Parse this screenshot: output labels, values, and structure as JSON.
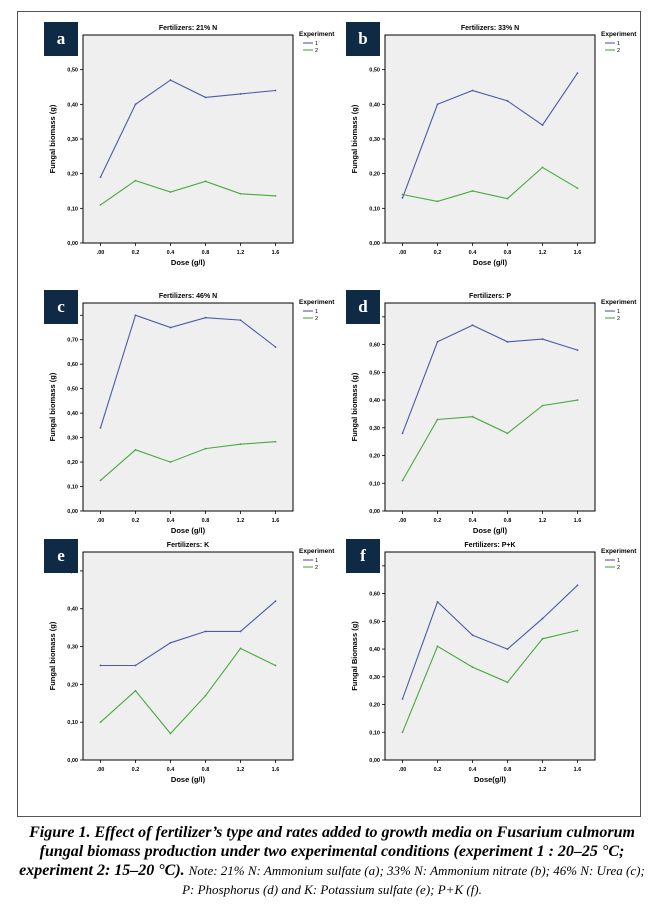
{
  "colors": {
    "experiment_1": "#4a5ba8",
    "experiment_2": "#4aa83f",
    "plot_background": "#efefef",
    "badge": "#0f2a44"
  },
  "chart_data": [
    {
      "id": "a",
      "type": "line",
      "title": "Fertilizers: 21% N",
      "xlabel": "Dose (g/l)",
      "ylabel": "Fungal biomass (g)",
      "categories": [
        ".00",
        "0.2",
        "0.4",
        "0.8",
        "1.2",
        "1.6"
      ],
      "yticks": [
        "0,00",
        "0,10",
        "0,20",
        "0,30",
        "0,40",
        "0,50"
      ],
      "ylim": [
        0,
        0.6
      ],
      "legend_title": "Experiment",
      "legend_position": "top-right",
      "series": [
        {
          "name": "1",
          "values": [
            0.19,
            0.4,
            0.47,
            0.42,
            0.43,
            0.44
          ]
        },
        {
          "name": "2",
          "values": [
            0.11,
            0.18,
            0.147,
            0.178,
            0.142,
            0.136
          ]
        }
      ]
    },
    {
      "id": "b",
      "type": "line",
      "title": "Fertilizers: 33% N",
      "xlabel": "Dose (g/l)",
      "ylabel": "Fungal biomass (g)",
      "categories": [
        ".00",
        "0.2",
        "0.4",
        "0.8",
        "1.2",
        "1.6"
      ],
      "yticks": [
        "0,00",
        "0,10",
        "0,20",
        "0,30",
        "0,40",
        "0,50"
      ],
      "ylim": [
        0,
        0.6
      ],
      "legend_title": "Experiment",
      "legend_position": "top-right",
      "series": [
        {
          "name": "1",
          "values": [
            0.13,
            0.4,
            0.44,
            0.41,
            0.34,
            0.49
          ]
        },
        {
          "name": "2",
          "values": [
            0.14,
            0.12,
            0.15,
            0.128,
            0.218,
            0.158
          ]
        }
      ]
    },
    {
      "id": "c",
      "type": "line",
      "title": "Fertilizers: 46% N",
      "xlabel": "Dose (g/l)",
      "ylabel": "Fungal biomass (g)",
      "categories": [
        ".00",
        "0.2",
        "0.4",
        "0.8",
        "1.2",
        "1.6"
      ],
      "yticks": [
        "0,00",
        "0,10",
        "0,20",
        "0,30",
        "0,40",
        "0,50",
        "0,60",
        "0,70",
        "0,80"
      ],
      "ylim": [
        0,
        0.85
      ],
      "legend_title": "Experiment",
      "legend_position": "top-right",
      "series": [
        {
          "name": "1",
          "values": [
            0.34,
            0.8,
            0.75,
            0.79,
            0.78,
            0.67
          ]
        },
        {
          "name": "2",
          "values": [
            0.125,
            0.25,
            0.2,
            0.255,
            0.273,
            0.283
          ]
        }
      ]
    },
    {
      "id": "d",
      "type": "line",
      "title": "Fertilizers: P",
      "xlabel": "Dose (g/l)",
      "ylabel": "Fungal biomass (g)",
      "categories": [
        ".00",
        "0.2",
        "0.4",
        "0.8",
        "1.2",
        "1.6"
      ],
      "yticks": [
        "0,00",
        "0,10",
        "0,20",
        "0,30",
        "0,40",
        "0,50",
        "0,60",
        "0,70"
      ],
      "ylim": [
        0,
        0.75
      ],
      "legend_title": "Experiment",
      "legend_position": "top-right",
      "series": [
        {
          "name": "1",
          "values": [
            0.28,
            0.61,
            0.67,
            0.61,
            0.62,
            0.58
          ]
        },
        {
          "name": "2",
          "values": [
            0.11,
            0.33,
            0.34,
            0.28,
            0.38,
            0.4
          ]
        }
      ]
    },
    {
      "id": "e",
      "type": "line",
      "title": "Fertilizers: K",
      "xlabel": "Dose (g/l)",
      "ylabel": "Fungal biomass (g)",
      "categories": [
        ".00",
        "0.2",
        "0.4",
        "0.8",
        "1.2",
        "1.6"
      ],
      "yticks": [
        "0,00",
        "0,10",
        "0,20",
        "0,30",
        "0,40",
        "0,50"
      ],
      "ylim": [
        0,
        0.55
      ],
      "legend_title": "Experiment",
      "legend_position": "top-right",
      "series": [
        {
          "name": "1",
          "values": [
            0.25,
            0.25,
            0.31,
            0.34,
            0.34,
            0.42
          ]
        },
        {
          "name": "2",
          "values": [
            0.1,
            0.183,
            0.07,
            0.17,
            0.295,
            0.25
          ]
        }
      ]
    },
    {
      "id": "f",
      "type": "line",
      "title": "Fertilizers: P+K",
      "xlabel": "Dose(g/l)",
      "ylabel": "Fungal Biomass (g)",
      "categories": [
        ".00",
        "0.2",
        "0.4",
        "0.8",
        "1.2",
        "1.6"
      ],
      "yticks": [
        "0,00",
        "0,10",
        "0,20",
        "0,30",
        "0,40",
        "0,50",
        "0,60",
        "0,70"
      ],
      "ylim": [
        0,
        0.75
      ],
      "legend_title": "Experiment",
      "legend_position": "top-right",
      "series": [
        {
          "name": "1",
          "values": [
            0.22,
            0.57,
            0.45,
            0.4,
            0.51,
            0.63
          ]
        },
        {
          "name": "2",
          "values": [
            0.1,
            0.41,
            0.335,
            0.28,
            0.437,
            0.467
          ]
        }
      ]
    }
  ],
  "caption": {
    "figure": "Figure 1. Effect of fertilizer’s type and rates added to growth media on Fusarium culmorum fungal biomass production under two experimental conditions (experiment 1 : 20–25 °C; experiment 2: 15–20 °C).",
    "note": "Note: 21% N: Ammonium sulfate (a); 33% N: Ammonium nitrate (b); 46% N: Urea (c); P: Phosphorus (d) and K: Potassium sulfate (e); P+K (f)."
  }
}
